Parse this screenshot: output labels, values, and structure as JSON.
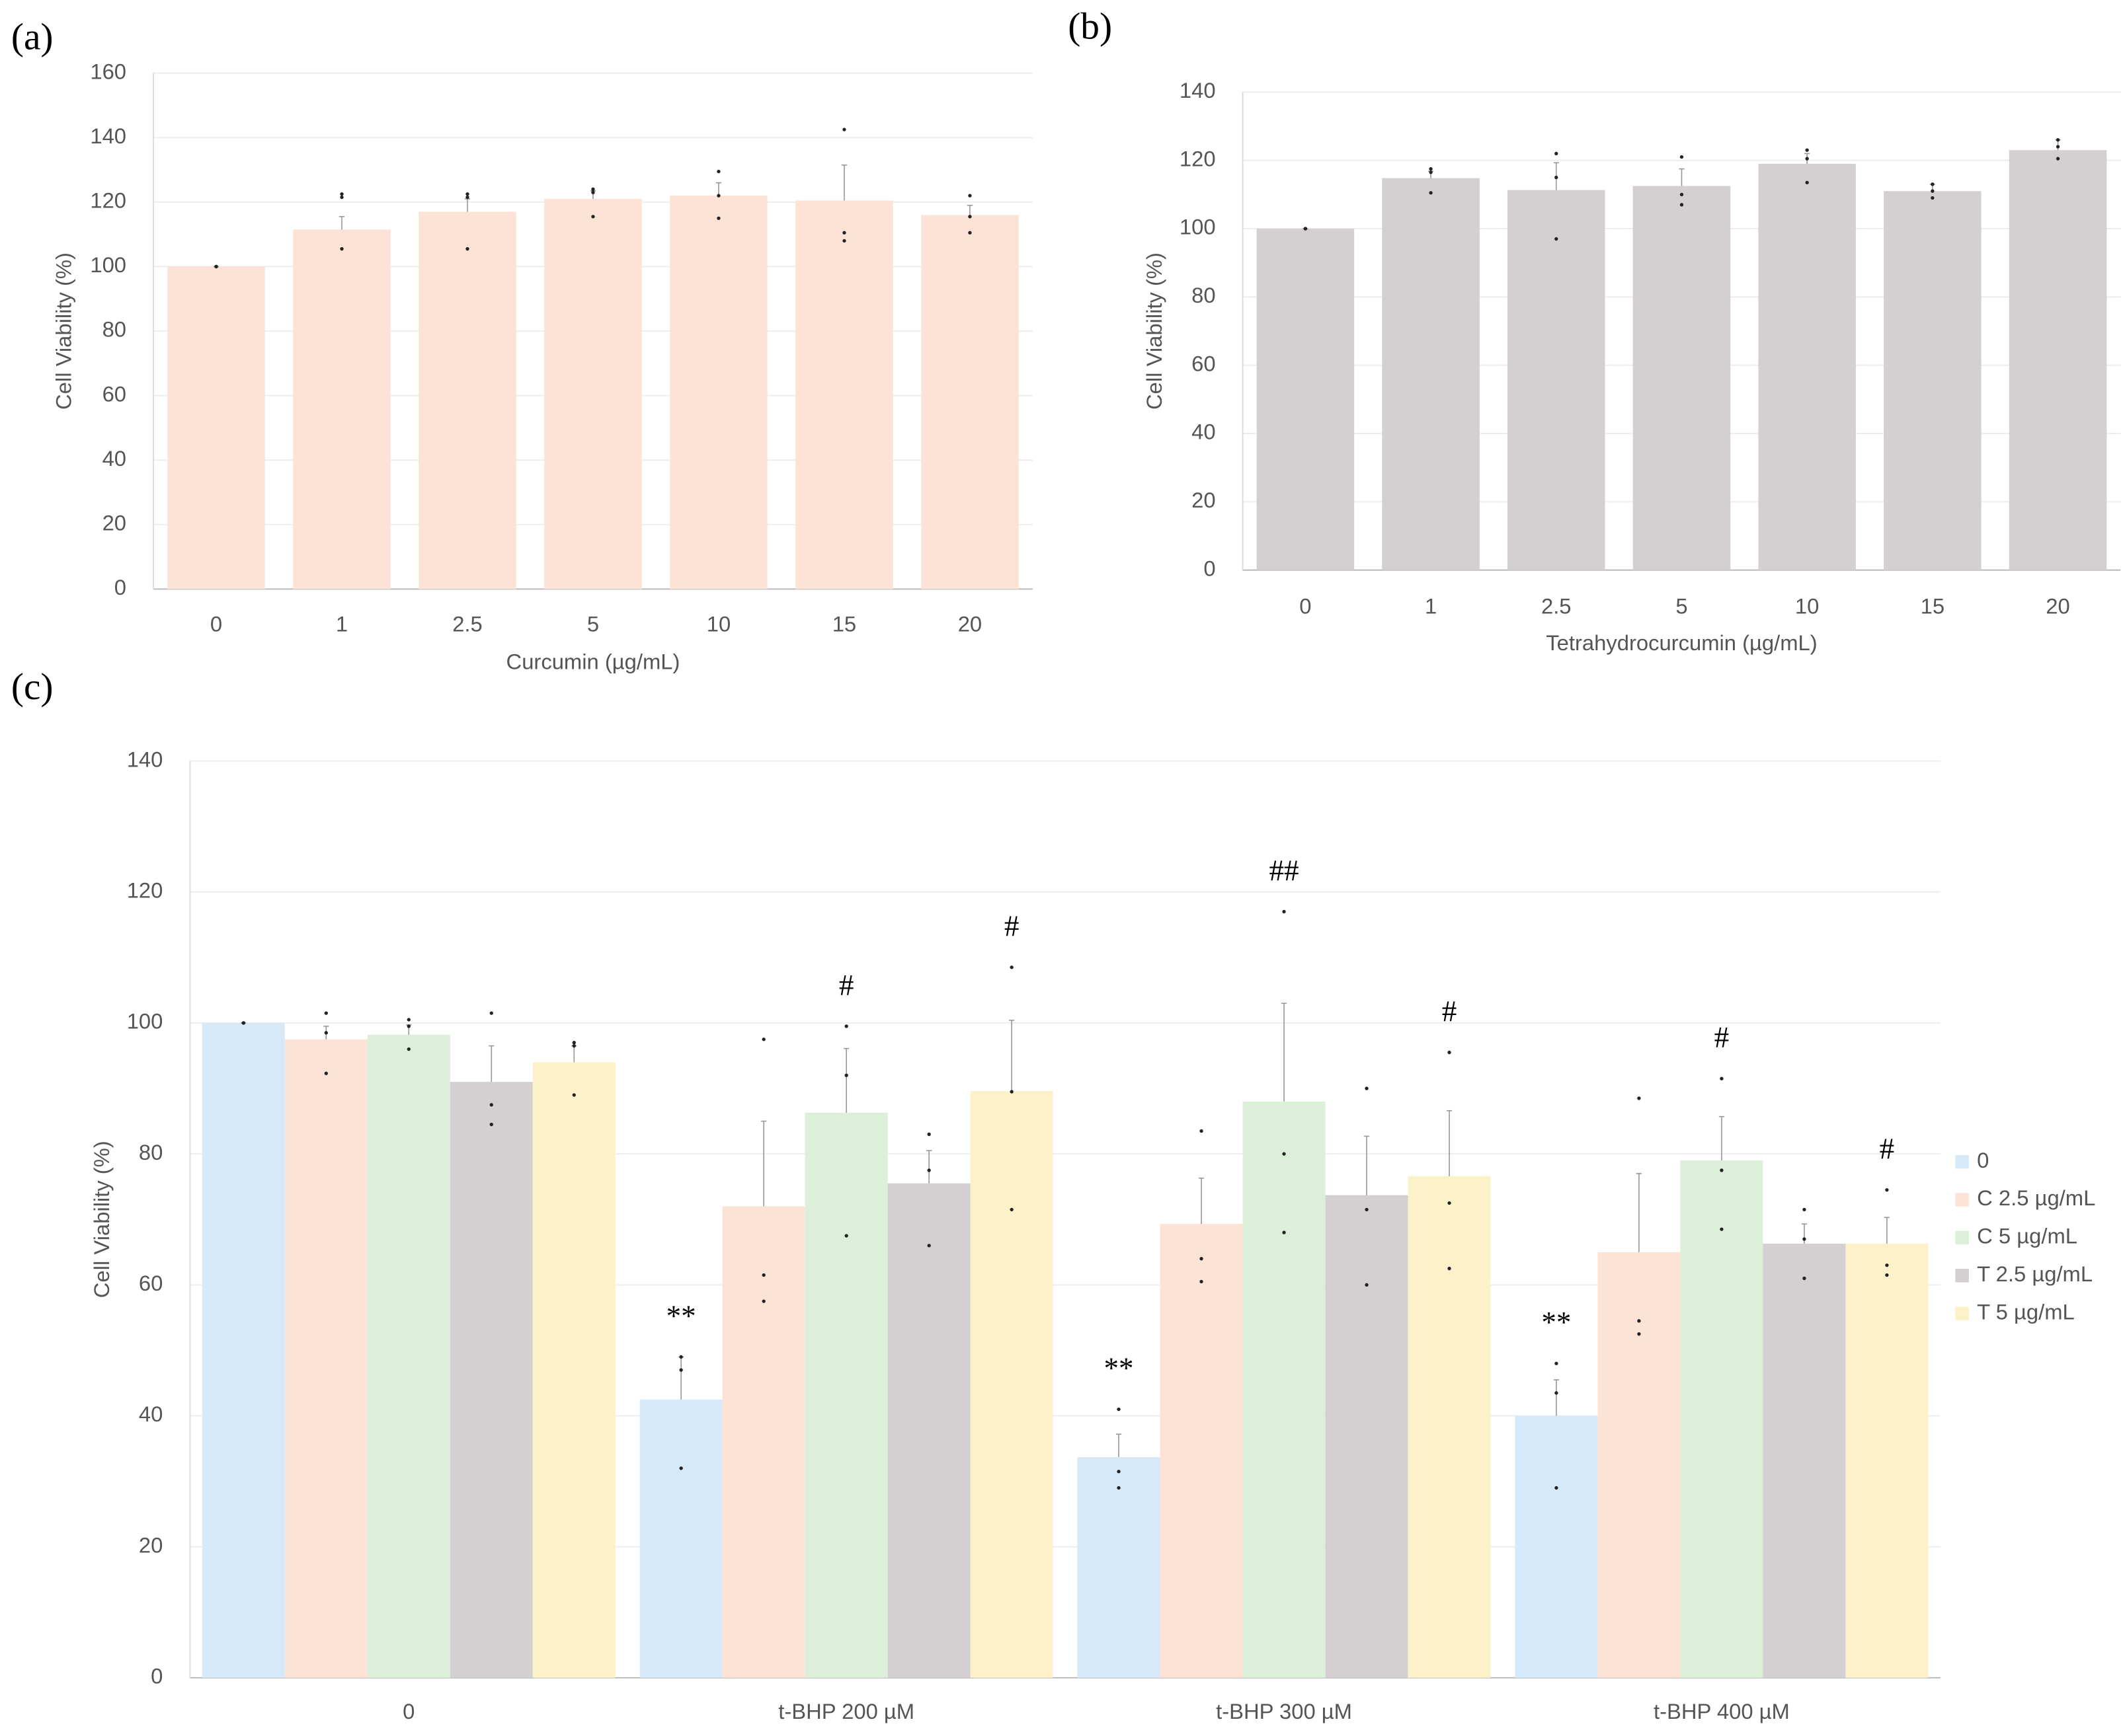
{
  "chart_data": [
    {
      "type": "bar",
      "panel": "(a)",
      "ylabel": "Cell Viability (%)",
      "xlabel": "Curcumin (µg/mL)",
      "categories": [
        "0",
        "1",
        "2.5",
        "5",
        "10",
        "15",
        "20"
      ],
      "values": [
        100,
        111.5,
        117,
        121,
        122,
        120.5,
        116
      ],
      "errors": [
        0,
        4,
        4,
        2.5,
        4,
        11,
        3
      ],
      "points": [
        [
          100,
          100,
          100
        ],
        [
          122.5,
          121.5,
          105.5
        ],
        [
          122.5,
          121.5,
          105.5
        ],
        [
          124,
          123,
          115.5
        ],
        [
          129.5,
          122,
          115
        ],
        [
          142.5,
          110.5,
          108
        ],
        [
          122,
          115.5,
          110.5
        ]
      ],
      "color": "#fde3d5",
      "ylim": [
        0,
        160
      ],
      "yticks": [
        0,
        20,
        40,
        60,
        80,
        100,
        120,
        140,
        160
      ],
      "grid": true
    },
    {
      "type": "bar",
      "panel": "(b)",
      "ylabel": "Cell Viability (%)",
      "xlabel": "Tetrahydrocurcumin (µg/mL)",
      "categories": [
        "0",
        "1",
        "2.5",
        "5",
        "10",
        "15",
        "20"
      ],
      "values": [
        100,
        114.8,
        111.3,
        112.5,
        119,
        111,
        123
      ],
      "errors": [
        0,
        2,
        8,
        5,
        3,
        2,
        3
      ],
      "points": [
        [
          100,
          100,
          100
        ],
        [
          117.5,
          116.5,
          110.5
        ],
        [
          122,
          115,
          97
        ],
        [
          121,
          110,
          107
        ],
        [
          123,
          120.5,
          113.5
        ],
        [
          113,
          111,
          109
        ],
        [
          126,
          124,
          120.5
        ]
      ],
      "color": "#d4cfd0",
      "ylim": [
        0,
        140
      ],
      "yticks": [
        0,
        20,
        40,
        60,
        80,
        100,
        120,
        140
      ],
      "grid": true
    },
    {
      "type": "grouped_bar",
      "panel": "(c)",
      "ylabel": "Cell Viability (%)",
      "categories": [
        "0",
        "t-BHP 200 µM",
        "t-BHP 300 µM",
        "t-BHP 400 µM"
      ],
      "series": [
        {
          "name": "0",
          "color": "#d6e9f8",
          "values": [
            100,
            42.5,
            33.7,
            40
          ],
          "errors": [
            0,
            6.5,
            3.5,
            5.5
          ],
          "points": [
            [
              100,
              100,
              100
            ],
            [
              49,
              47,
              32
            ],
            [
              41,
              31.5,
              29
            ],
            [
              48,
              43.5,
              29
            ]
          ],
          "annotations": [
            null,
            "**",
            "**",
            "**"
          ]
        },
        {
          "name": "C 2.5 µg/mL",
          "color": "#fde3d5",
          "values": [
            97.5,
            72,
            69.3,
            65
          ],
          "errors": [
            2,
            13,
            7,
            12
          ],
          "points": [
            [
              101.5,
              98.5,
              92.3
            ],
            [
              97.5,
              61.5,
              57.5
            ],
            [
              83.5,
              64,
              60.5
            ],
            [
              88.5,
              54.5,
              52.5
            ]
          ]
        },
        {
          "name": "C 5 µg/mL",
          "color": "#dcefd9",
          "values": [
            98.2,
            86.3,
            88,
            79
          ],
          "errors": [
            1.5,
            9.8,
            15,
            6.7
          ],
          "points": [
            [
              100.5,
              99.5,
              96
            ],
            [
              99.5,
              92,
              67.5
            ],
            [
              117,
              80,
              68
            ],
            [
              91.5,
              77.5,
              68.5
            ]
          ],
          "annotations": [
            null,
            "#",
            "##",
            "#"
          ]
        },
        {
          "name": "T 2.5 µg/mL",
          "color": "#d4cfd0",
          "values": [
            91,
            75.5,
            73.7,
            66.3
          ],
          "errors": [
            5.5,
            5,
            9,
            3
          ],
          "points": [
            [
              101.5,
              87.5,
              84.5
            ],
            [
              83,
              77.5,
              66
            ],
            [
              90,
              71.5,
              60
            ],
            [
              71.5,
              67,
              61
            ]
          ]
        },
        {
          "name": "T 5 µg/mL",
          "color": "#fdf1ca",
          "values": [
            94,
            89.6,
            76.6,
            66.3
          ],
          "errors": [
            2.5,
            10.8,
            10,
            4
          ],
          "points": [
            [
              97,
              96.5,
              89
            ],
            [
              108.5,
              89.5,
              71.5
            ],
            [
              95.5,
              72.5,
              62.5
            ],
            [
              74.5,
              63,
              61.5
            ]
          ],
          "annotations": [
            null,
            "#",
            "#",
            "#"
          ]
        }
      ],
      "ylim": [
        0,
        140
      ],
      "yticks": [
        0,
        20,
        40,
        60,
        80,
        100,
        120,
        140
      ],
      "grid": true,
      "legend": "right"
    }
  ]
}
